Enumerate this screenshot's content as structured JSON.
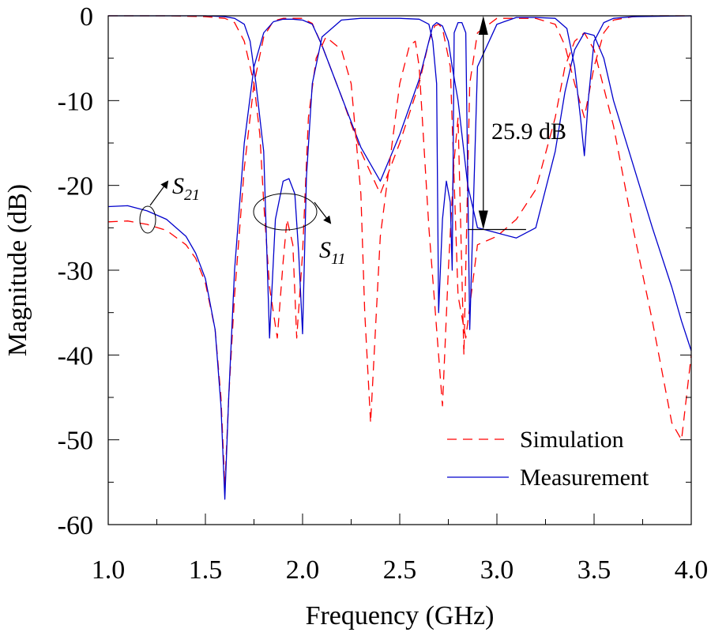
{
  "chart_data": {
    "type": "line",
    "title": "",
    "xlabel": "Frequency (GHz)",
    "ylabel": "Magnitude (dB)",
    "xlim": [
      1.0,
      4.0
    ],
    "ylim": [
      -60,
      0
    ],
    "x_ticks": [
      "1.0",
      "1.5",
      "2.0",
      "2.5",
      "3.0",
      "3.5",
      "4.0"
    ],
    "y_ticks": [
      "0",
      "-10",
      "-20",
      "-30",
      "-40",
      "-50",
      "-60"
    ],
    "grid": false,
    "legend": {
      "position": "bottom-right",
      "entries": [
        {
          "name": "Simulation",
          "style": "dashed",
          "color": "#ff0000"
        },
        {
          "name": "Measurement",
          "style": "solid",
          "color": "#0000cc"
        }
      ]
    },
    "annotations": {
      "s21_label": "S",
      "s21_sub": "21",
      "s11_label": "S",
      "s11_sub": "11",
      "rejection_label": "25.9 dB",
      "rejection_x": 2.93,
      "rejection_top": 0,
      "rejection_bottom": -25.2,
      "rejection_line_x": [
        2.85,
        3.15
      ]
    },
    "series": [
      {
        "name": "Simulation S21",
        "style": "dashed",
        "color": "#ff0000",
        "x": [
          1.0,
          1.1,
          1.2,
          1.3,
          1.4,
          1.45,
          1.5,
          1.55,
          1.58,
          1.6,
          1.62,
          1.65,
          1.7,
          1.75,
          1.8,
          1.85,
          1.9,
          2.0,
          2.05,
          2.1,
          2.2,
          2.3,
          2.4,
          2.5,
          2.6,
          2.65,
          2.68,
          2.7,
          2.72,
          2.76,
          2.8,
          2.84,
          2.9,
          3.0,
          3.1,
          3.2,
          3.3,
          3.35,
          3.4,
          3.45,
          3.5,
          3.6,
          3.7,
          3.8,
          3.9,
          3.95,
          4.0
        ],
        "y": [
          -24.3,
          -24.2,
          -24.6,
          -25.3,
          -27.0,
          -28.6,
          -31.5,
          -37.0,
          -45.0,
          -55.5,
          -45.0,
          -33.0,
          -18.0,
          -8.0,
          -2.5,
          -0.6,
          -0.3,
          -0.3,
          -0.9,
          -3.5,
          -9.5,
          -16.0,
          -21.0,
          -15.0,
          -8.0,
          -3.0,
          -1.2,
          -1.0,
          -1.5,
          -6.0,
          -33.0,
          -38.0,
          -27.0,
          -26.0,
          -24.0,
          -20.5,
          -12.0,
          -6.0,
          -3.0,
          -2.0,
          -4.0,
          -13.0,
          -25.0,
          -36.0,
          -48.0,
          -50.0,
          -40.0
        ]
      },
      {
        "name": "Measurement S21",
        "style": "solid",
        "color": "#0000cc",
        "x": [
          1.0,
          1.1,
          1.2,
          1.3,
          1.4,
          1.45,
          1.5,
          1.55,
          1.58,
          1.6,
          1.62,
          1.65,
          1.7,
          1.75,
          1.8,
          1.85,
          1.9,
          1.95,
          2.0,
          2.05,
          2.1,
          2.2,
          2.3,
          2.4,
          2.5,
          2.6,
          2.65,
          2.67,
          2.69,
          2.72,
          2.75,
          2.77,
          2.8,
          2.85,
          2.9,
          3.0,
          3.1,
          3.2,
          3.3,
          3.35,
          3.4,
          3.45,
          3.5,
          3.55,
          3.6,
          3.7,
          3.8,
          3.9,
          3.95,
          4.0
        ],
        "y": [
          -22.5,
          -22.4,
          -23.0,
          -24.0,
          -26.0,
          -28.0,
          -31.0,
          -37.0,
          -46.0,
          -57.0,
          -45.0,
          -30.0,
          -15.0,
          -6.0,
          -2.0,
          -0.7,
          -0.4,
          -0.4,
          -0.5,
          -1.0,
          -3.5,
          -9.5,
          -15.5,
          -19.5,
          -14.0,
          -7.5,
          -3.0,
          -1.2,
          -0.8,
          -1.2,
          -3.0,
          -6.0,
          -10.0,
          -20.0,
          -25.0,
          -25.6,
          -26.2,
          -25.0,
          -16.0,
          -9.0,
          -4.0,
          -2.0,
          -2.3,
          -5.0,
          -10.0,
          -17.5,
          -25.0,
          -32.0,
          -36.0,
          -39.5
        ]
      },
      {
        "name": "Simulation S11",
        "style": "dashed",
        "color": "#ff0000",
        "x": [
          1.0,
          1.3,
          1.5,
          1.6,
          1.65,
          1.7,
          1.75,
          1.78,
          1.8,
          1.83,
          1.87,
          1.9,
          1.92,
          1.95,
          1.97,
          2.0,
          2.03,
          2.07,
          2.12,
          2.2,
          2.25,
          2.3,
          2.32,
          2.35,
          2.4,
          2.5,
          2.55,
          2.58,
          2.6,
          2.65,
          2.72,
          2.75,
          2.78,
          2.8,
          2.83,
          2.86,
          2.9,
          3.0,
          3.2,
          3.3,
          3.35,
          3.4,
          3.45,
          3.5,
          3.55,
          3.6,
          3.7,
          3.8,
          4.0
        ],
        "y": [
          0,
          0,
          -0.1,
          -0.3,
          -0.8,
          -3.0,
          -8.0,
          -14.0,
          -22.0,
          -32.0,
          -38.0,
          -29.0,
          -24.0,
          -27.0,
          -38.0,
          -28.0,
          -12.0,
          -5.0,
          -2.5,
          -4.0,
          -8.0,
          -21.0,
          -35.0,
          -48.0,
          -26.0,
          -8.0,
          -3.5,
          -3.0,
          -6.0,
          -25.0,
          -46.0,
          -30.0,
          -17.0,
          -12.0,
          -40.0,
          -8.0,
          -2.0,
          -0.3,
          -0.3,
          -1.0,
          -3.5,
          -8.0,
          -12.0,
          -6.0,
          -2.0,
          -0.5,
          -0.1,
          0,
          0
        ]
      },
      {
        "name": "Measurement S11",
        "style": "solid",
        "color": "#0000cc",
        "x": [
          1.0,
          1.3,
          1.5,
          1.6,
          1.65,
          1.7,
          1.73,
          1.76,
          1.8,
          1.83,
          1.86,
          1.9,
          1.93,
          1.96,
          1.98,
          2.0,
          2.02,
          2.05,
          2.1,
          2.2,
          2.3,
          2.4,
          2.5,
          2.6,
          2.65,
          2.67,
          2.69,
          2.7,
          2.72,
          2.74,
          2.76,
          2.77,
          2.78,
          2.8,
          2.82,
          2.84,
          2.86,
          2.9,
          3.0,
          3.1,
          3.2,
          3.3,
          3.36,
          3.4,
          3.43,
          3.45,
          3.47,
          3.5,
          3.55,
          3.6,
          3.7,
          4.0
        ],
        "y": [
          0,
          0,
          0,
          -0.1,
          -0.3,
          -1.0,
          -3.0,
          -8.0,
          -16.0,
          -38.0,
          -24.0,
          -19.5,
          -19.2,
          -21.0,
          -28.0,
          -37.5,
          -19.0,
          -8.0,
          -2.5,
          -0.5,
          -0.3,
          -0.3,
          -0.3,
          -0.4,
          -1.0,
          -3.0,
          -8.0,
          -35.0,
          -24.0,
          -19.5,
          -22.0,
          -30.0,
          -2.0,
          -0.8,
          -0.8,
          -2.0,
          -37.0,
          -6.0,
          -1.0,
          -0.2,
          -0.2,
          -0.3,
          -1.5,
          -6.0,
          -12.0,
          -16.5,
          -10.0,
          -3.0,
          -0.8,
          -0.3,
          -0.1,
          0
        ]
      }
    ]
  }
}
